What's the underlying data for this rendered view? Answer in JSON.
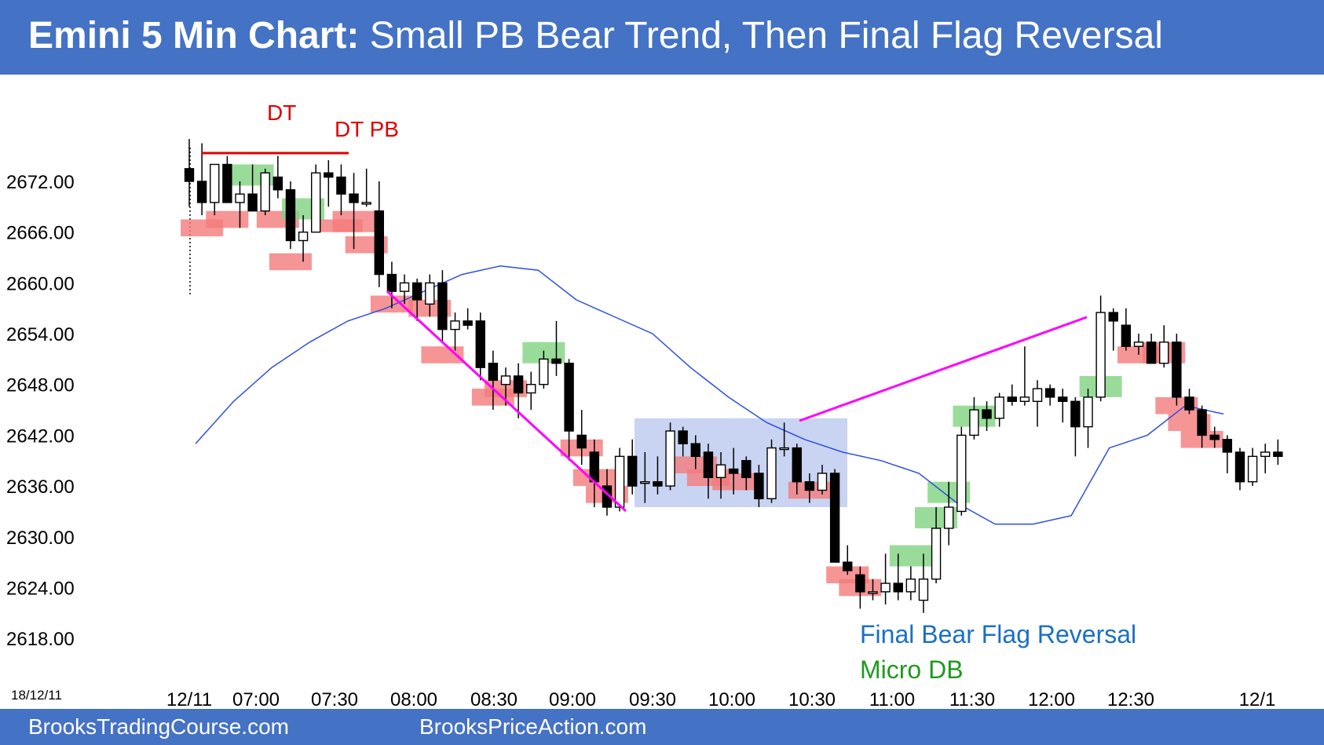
{
  "header": {
    "title_bold": "Emini 5 Min Chart:",
    "title_rest": " Small PB Bear Trend, Then Final Flag Reversal"
  },
  "footer": {
    "left_site": "BrooksTradingCourse.com",
    "right_site": "BrooksPriceAction.com"
  },
  "colors": {
    "banner": "#4472c4",
    "ema": "#2e4fe0",
    "trend_line": "#ff00ff",
    "dt_line": "#e00000",
    "bear_box": "#f47a7a",
    "bull_box": "#7fd37f",
    "range_box": "#b7c6ef",
    "blue_text": "#1a6fc4",
    "green_text": "#1f9a1f",
    "red_text": "#e00000"
  },
  "chart_data": {
    "type": "candlestick",
    "date_label": "18/12/11",
    "y_ticks": [
      "2672.00",
      "2666.00",
      "2660.00",
      "2654.00",
      "2648.00",
      "2642.00",
      "2636.00",
      "2630.00",
      "2624.00",
      "2618.00"
    ],
    "ylim": [
      2614,
      2681
    ],
    "x_ticks": [
      "12/11",
      "07:00",
      "07:30",
      "08:00",
      "08:30",
      "09:00",
      "09:30",
      "10:00",
      "10:30",
      "11:00",
      "11:30",
      "12:00",
      "12:30",
      "12/1"
    ],
    "candles": [
      {
        "o": 2673.5,
        "h": 2677.0,
        "l": 2669.0,
        "c": 2672.0
      },
      {
        "o": 2672.0,
        "h": 2676.5,
        "l": 2668.0,
        "c": 2669.5
      },
      {
        "o": 2669.5,
        "h": 2674.0,
        "l": 2668.0,
        "c": 2674.0
      },
      {
        "o": 2674.0,
        "h": 2675.0,
        "l": 2669.5,
        "c": 2669.5
      },
      {
        "o": 2669.5,
        "h": 2672.0,
        "l": 2666.5,
        "c": 2670.5
      },
      {
        "o": 2670.5,
        "h": 2674.0,
        "l": 2668.5,
        "c": 2668.5
      },
      {
        "o": 2668.5,
        "h": 2673.5,
        "l": 2668.0,
        "c": 2673.0
      },
      {
        "o": 2672.5,
        "h": 2675.0,
        "l": 2670.0,
        "c": 2671.0
      },
      {
        "o": 2671.0,
        "h": 2672.0,
        "l": 2664.0,
        "c": 2665.0
      },
      {
        "o": 2665.0,
        "h": 2668.0,
        "l": 2662.5,
        "c": 2666.0
      },
      {
        "o": 2666.0,
        "h": 2674.0,
        "l": 2666.0,
        "c": 2673.0
      },
      {
        "o": 2673.0,
        "h": 2674.5,
        "l": 2669.0,
        "c": 2672.5
      },
      {
        "o": 2672.5,
        "h": 2674.0,
        "l": 2668.0,
        "c": 2670.5
      },
      {
        "o": 2670.5,
        "h": 2673.0,
        "l": 2664.0,
        "c": 2669.5
      },
      {
        "o": 2669.5,
        "h": 2673.5,
        "l": 2669.0,
        "c": 2669.5
      },
      {
        "o": 2668.5,
        "h": 2672.0,
        "l": 2659.5,
        "c": 2661.0
      },
      {
        "o": 2661.0,
        "h": 2662.5,
        "l": 2657.0,
        "c": 2659.0
      },
      {
        "o": 2659.0,
        "h": 2661.0,
        "l": 2657.5,
        "c": 2660.0
      },
      {
        "o": 2660.0,
        "h": 2660.5,
        "l": 2655.5,
        "c": 2658.0
      },
      {
        "o": 2657.5,
        "h": 2661.0,
        "l": 2656.0,
        "c": 2660.0
      },
      {
        "o": 2660.0,
        "h": 2661.5,
        "l": 2653.0,
        "c": 2654.5
      },
      {
        "o": 2654.5,
        "h": 2656.5,
        "l": 2652.0,
        "c": 2655.5
      },
      {
        "o": 2655.5,
        "h": 2657.0,
        "l": 2654.5,
        "c": 2655.0
      },
      {
        "o": 2655.5,
        "h": 2656.5,
        "l": 2648.5,
        "c": 2650.0
      },
      {
        "o": 2650.5,
        "h": 2652.0,
        "l": 2645.0,
        "c": 2648.5
      },
      {
        "o": 2648.0,
        "h": 2650.0,
        "l": 2645.5,
        "c": 2649.0
      },
      {
        "o": 2649.0,
        "h": 2650.5,
        "l": 2644.0,
        "c": 2647.0
      },
      {
        "o": 2647.0,
        "h": 2649.5,
        "l": 2645.0,
        "c": 2648.0
      },
      {
        "o": 2648.0,
        "h": 2652.0,
        "l": 2647.5,
        "c": 2651.0
      },
      {
        "o": 2651.0,
        "h": 2655.5,
        "l": 2649.0,
        "c": 2650.5
      },
      {
        "o": 2650.5,
        "h": 2651.0,
        "l": 2639.0,
        "c": 2642.5
      },
      {
        "o": 2642.0,
        "h": 2645.0,
        "l": 2638.5,
        "c": 2640.5
      },
      {
        "o": 2640.0,
        "h": 2641.5,
        "l": 2633.5,
        "c": 2636.5
      },
      {
        "o": 2636.0,
        "h": 2638.0,
        "l": 2632.5,
        "c": 2633.5
      },
      {
        "o": 2633.5,
        "h": 2640.5,
        "l": 2633.0,
        "c": 2639.5
      },
      {
        "o": 2639.5,
        "h": 2641.5,
        "l": 2635.0,
        "c": 2636.0
      },
      {
        "o": 2636.5,
        "h": 2640.0,
        "l": 2634.0,
        "c": 2636.5
      },
      {
        "o": 2636.5,
        "h": 2639.5,
        "l": 2635.0,
        "c": 2636.0
      },
      {
        "o": 2636.0,
        "h": 2643.5,
        "l": 2635.5,
        "c": 2642.5
      },
      {
        "o": 2642.5,
        "h": 2643.0,
        "l": 2639.5,
        "c": 2641.0
      },
      {
        "o": 2641.0,
        "h": 2642.0,
        "l": 2638.0,
        "c": 2639.5
      },
      {
        "o": 2640.0,
        "h": 2641.0,
        "l": 2634.5,
        "c": 2637.0
      },
      {
        "o": 2637.0,
        "h": 2640.0,
        "l": 2634.5,
        "c": 2638.5
      },
      {
        "o": 2638.0,
        "h": 2640.5,
        "l": 2635.0,
        "c": 2637.5
      },
      {
        "o": 2639.0,
        "h": 2639.5,
        "l": 2635.5,
        "c": 2637.0
      },
      {
        "o": 2637.5,
        "h": 2638.5,
        "l": 2633.5,
        "c": 2634.5
      },
      {
        "o": 2634.5,
        "h": 2641.5,
        "l": 2634.0,
        "c": 2640.5
      },
      {
        "o": 2640.5,
        "h": 2643.5,
        "l": 2639.5,
        "c": 2640.5
      },
      {
        "o": 2640.5,
        "h": 2641.0,
        "l": 2635.0,
        "c": 2636.5
      },
      {
        "o": 2636.5,
        "h": 2637.5,
        "l": 2634.0,
        "c": 2635.5
      },
      {
        "o": 2635.5,
        "h": 2638.5,
        "l": 2635.0,
        "c": 2637.5
      },
      {
        "o": 2637.5,
        "h": 2638.0,
        "l": 2627.0,
        "c": 2627.0
      },
      {
        "o": 2627.0,
        "h": 2629.0,
        "l": 2625.5,
        "c": 2626.0
      },
      {
        "o": 2625.5,
        "h": 2626.5,
        "l": 2621.5,
        "c": 2623.5
      },
      {
        "o": 2623.5,
        "h": 2625.0,
        "l": 2622.5,
        "c": 2623.5
      },
      {
        "o": 2623.5,
        "h": 2628.0,
        "l": 2622.0,
        "c": 2624.5
      },
      {
        "o": 2624.5,
        "h": 2628.0,
        "l": 2622.5,
        "c": 2623.5
      },
      {
        "o": 2623.5,
        "h": 2626.5,
        "l": 2622.5,
        "c": 2625.0
      },
      {
        "o": 2622.5,
        "h": 2628.0,
        "l": 2621.0,
        "c": 2625.0
      },
      {
        "o": 2625.0,
        "h": 2633.5,
        "l": 2624.5,
        "c": 2631.0
      },
      {
        "o": 2631.0,
        "h": 2636.5,
        "l": 2629.0,
        "c": 2633.5
      },
      {
        "o": 2633.0,
        "h": 2643.0,
        "l": 2632.5,
        "c": 2642.0
      },
      {
        "o": 2642.0,
        "h": 2646.5,
        "l": 2641.5,
        "c": 2645.0
      },
      {
        "o": 2645.0,
        "h": 2646.0,
        "l": 2642.5,
        "c": 2644.0
      },
      {
        "o": 2644.0,
        "h": 2647.0,
        "l": 2643.0,
        "c": 2646.5
      },
      {
        "o": 2646.5,
        "h": 2648.0,
        "l": 2645.5,
        "c": 2646.0
      },
      {
        "o": 2646.0,
        "h": 2652.5,
        "l": 2645.5,
        "c": 2646.5
      },
      {
        "o": 2646.0,
        "h": 2648.5,
        "l": 2643.0,
        "c": 2647.5
      },
      {
        "o": 2647.5,
        "h": 2648.0,
        "l": 2645.5,
        "c": 2646.5
      },
      {
        "o": 2646.5,
        "h": 2647.5,
        "l": 2643.5,
        "c": 2646.0
      },
      {
        "o": 2646.0,
        "h": 2646.5,
        "l": 2639.5,
        "c": 2643.0
      },
      {
        "o": 2643.0,
        "h": 2647.5,
        "l": 2640.5,
        "c": 2646.5
      },
      {
        "o": 2646.5,
        "h": 2658.5,
        "l": 2646.0,
        "c": 2656.5
      },
      {
        "o": 2656.5,
        "h": 2657.0,
        "l": 2652.0,
        "c": 2655.5
      },
      {
        "o": 2655.0,
        "h": 2657.0,
        "l": 2652.0,
        "c": 2652.5
      },
      {
        "o": 2652.5,
        "h": 2654.0,
        "l": 2651.5,
        "c": 2653.0
      },
      {
        "o": 2653.0,
        "h": 2654.0,
        "l": 2650.5,
        "c": 2650.5
      },
      {
        "o": 2650.5,
        "h": 2655.0,
        "l": 2650.0,
        "c": 2653.0
      },
      {
        "o": 2653.0,
        "h": 2654.0,
        "l": 2645.5,
        "c": 2646.5
      },
      {
        "o": 2646.5,
        "h": 2647.5,
        "l": 2644.5,
        "c": 2645.0
      },
      {
        "o": 2645.0,
        "h": 2645.5,
        "l": 2640.5,
        "c": 2642.0
      },
      {
        "o": 2642.0,
        "h": 2643.0,
        "l": 2640.5,
        "c": 2641.5
      },
      {
        "o": 2641.5,
        "h": 2642.0,
        "l": 2637.5,
        "c": 2640.0
      },
      {
        "o": 2640.0,
        "h": 2640.5,
        "l": 2635.5,
        "c": 2636.5
      },
      {
        "o": 2636.5,
        "h": 2640.5,
        "l": 2636.0,
        "c": 2639.5
      },
      {
        "o": 2639.5,
        "h": 2641.0,
        "l": 2637.5,
        "c": 2640.0
      },
      {
        "o": 2640.0,
        "h": 2641.5,
        "l": 2638.5,
        "c": 2639.5
      }
    ],
    "ema": [
      2641,
      2646,
      2650,
      2653,
      2655.5,
      2657,
      2659,
      2661,
      2662,
      2661.5,
      2658,
      2656,
      2654,
      2650,
      2646.5,
      2643.5,
      2641.5,
      2640,
      2639,
      2637.5,
      2634,
      2631.5,
      2631.5,
      2632.5,
      2640.5,
      2642,
      2645.5,
      2644.5
    ],
    "annotations": {
      "dt": "DT",
      "dt_pb": "DT PB",
      "final_flag": "Final Bear Flag Reversal",
      "micro_db": "Micro DB"
    }
  }
}
